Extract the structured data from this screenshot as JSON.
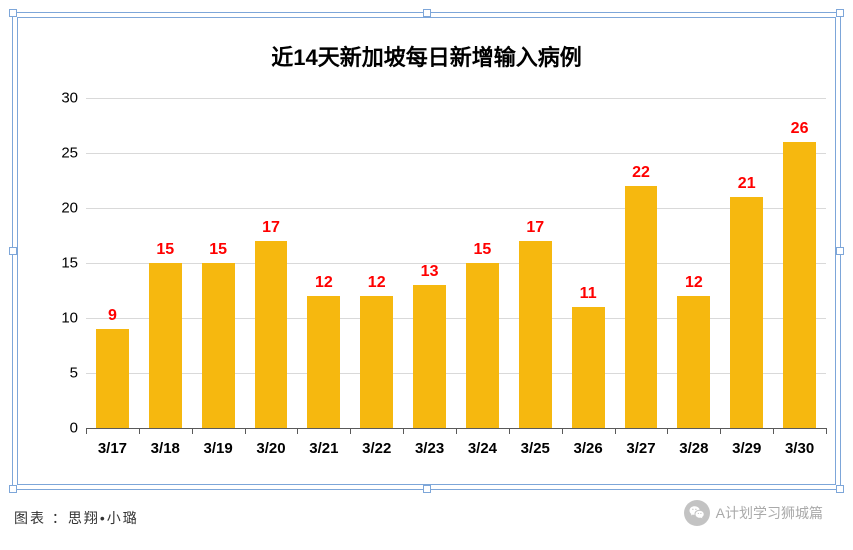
{
  "chart": {
    "type": "bar",
    "title": "近14天新加坡每日新增输入病例",
    "title_fontsize": 22,
    "categories": [
      "3/17",
      "3/18",
      "3/19",
      "3/20",
      "3/21",
      "3/22",
      "3/23",
      "3/24",
      "3/25",
      "3/26",
      "3/27",
      "3/28",
      "3/29",
      "3/30"
    ],
    "values": [
      9,
      15,
      15,
      17,
      12,
      12,
      13,
      15,
      17,
      11,
      22,
      12,
      21,
      26
    ],
    "bar_color": "#f6b80f",
    "data_label_color": "#ff0000",
    "data_label_fontsize": 16,
    "y_axis": {
      "min": 0,
      "max": 30,
      "step": 5,
      "ticks": [
        0,
        5,
        10,
        15,
        20,
        25,
        30
      ],
      "fontsize": 15
    },
    "x_axis": {
      "fontsize": 15
    },
    "grid_color": "#d9d9d9",
    "axis_color": "#595959",
    "background_color": "#ffffff",
    "border_color": "#7da6d9",
    "bar_width_ratio": 0.62
  },
  "footer": {
    "left": "图表 ：思翔•小璐",
    "left_fontsize": 14,
    "right": "A计划学习狮城篇",
    "right_fontsize": 14
  }
}
